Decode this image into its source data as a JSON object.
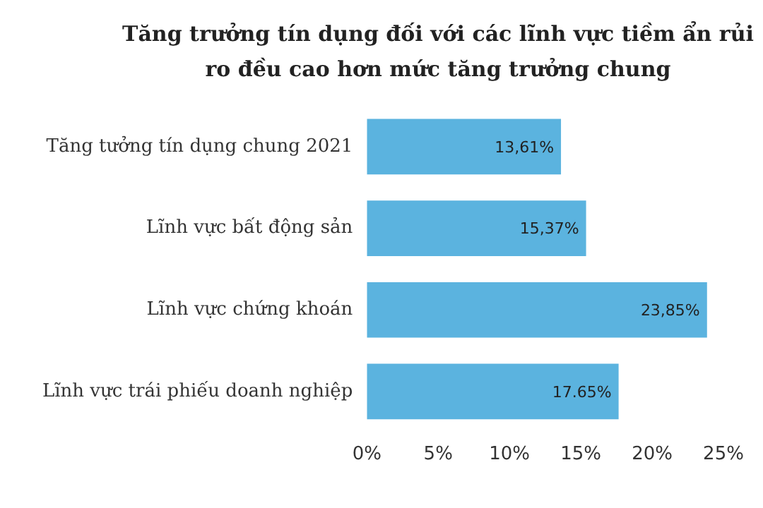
{
  "chart_data": {
    "type": "bar",
    "orientation": "horizontal",
    "title": "Tăng trưởng tín dụng đối với các lĩnh vực tiềm ẩn rủi ro đều cao hơn mức tăng trưởng chung",
    "categories": [
      "Tăng tưởng tín dụng chung 2021",
      "Lĩnh vực bất động sản",
      "Lĩnh vực chứng khoán",
      "Lĩnh vực trái phiếu doanh nghiệp"
    ],
    "values": [
      13.61,
      15.37,
      23.85,
      17.65
    ],
    "value_labels": [
      "13,61%",
      "15,37%",
      "23,85%",
      "17.65%"
    ],
    "color": "#5bb3df",
    "xlim": [
      0,
      25
    ],
    "xticks": [
      {
        "value": 0,
        "label": "0%"
      },
      {
        "value": 5,
        "label": "5%"
      },
      {
        "value": 10,
        "label": "10%"
      },
      {
        "value": 15,
        "label": "15%"
      },
      {
        "value": 20,
        "label": "20%"
      },
      {
        "value": 25,
        "label": "25%"
      }
    ],
    "grid": false,
    "legend": false
  }
}
